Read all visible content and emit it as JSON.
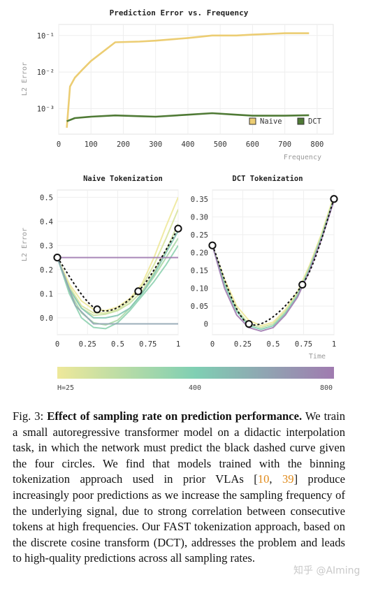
{
  "chart_data": [
    {
      "type": "line",
      "title": "Prediction Error vs. Frequency",
      "xlabel": "Frequency",
      "ylabel": "L2 Error",
      "yscale": "log",
      "xlim": [
        0,
        850
      ],
      "ylim": [
        0.0002,
        0.2
      ],
      "xticks": [
        "0",
        "100",
        "200",
        "300",
        "400",
        "500",
        "600",
        "700",
        "800"
      ],
      "yticks": [
        "10⁻¹",
        "10⁻²",
        "10⁻³"
      ],
      "legend": "bottom-right",
      "series": [
        {
          "name": "Naive",
          "color": "#eccd73",
          "x": [
            25,
            35,
            50,
            75,
            100,
            175,
            250,
            300,
            400,
            475,
            550,
            600,
            700,
            775
          ],
          "y": [
            0.0003,
            0.004,
            0.007,
            0.012,
            0.02,
            0.065,
            0.068,
            0.072,
            0.085,
            0.1,
            0.1,
            0.105,
            0.115,
            0.115
          ]
        },
        {
          "name": "DCT",
          "color": "#4f7a35",
          "x": [
            25,
            50,
            100,
            175,
            250,
            300,
            400,
            475,
            550,
            600,
            700,
            775
          ],
          "y": [
            0.00045,
            0.00055,
            0.0006,
            0.00065,
            0.00062,
            0.0006,
            0.00068,
            0.00075,
            0.00068,
            0.00064,
            0.00064,
            0.00066
          ]
        }
      ]
    },
    {
      "type": "line",
      "title": "Naive Tokenization",
      "ylabel": "L2 Error",
      "xlim": [
        0,
        1
      ],
      "ylim": [
        -0.07,
        0.53
      ],
      "xticks": [
        "0",
        "0.25",
        "0.5",
        "0.75",
        "1"
      ],
      "yticks": [
        "0.0",
        "0.1",
        "0.2",
        "0.3",
        "0.4",
        "0.5"
      ],
      "target": {
        "x": [
          0,
          0.33,
          0.67,
          1
        ],
        "y": [
          0.25,
          0.035,
          0.11,
          0.37
        ]
      },
      "predictions": [
        {
          "h": 25,
          "x": [
            0,
            0.1,
            0.2,
            0.3,
            0.4,
            0.5,
            0.6,
            0.7,
            0.8,
            0.9,
            1
          ],
          "y": [
            0.25,
            0.14,
            0.07,
            0.035,
            0.03,
            0.045,
            0.08,
            0.14,
            0.25,
            0.38,
            0.5
          ]
        },
        {
          "h": 100,
          "x": [
            0,
            0.1,
            0.2,
            0.3,
            0.4,
            0.5,
            0.6,
            0.7,
            0.8,
            0.9,
            1
          ],
          "y": [
            0.25,
            0.13,
            0.05,
            0.02,
            0.02,
            0.035,
            0.07,
            0.13,
            0.22,
            0.33,
            0.45
          ]
        },
        {
          "h": 150,
          "x": [
            0,
            0.1,
            0.2,
            0.3,
            0.4,
            0.5,
            0.6,
            0.7,
            0.8,
            0.9,
            1
          ],
          "y": [
            0.25,
            0.12,
            0.04,
            0.01,
            0.015,
            0.03,
            0.06,
            0.11,
            0.19,
            0.28,
            0.39
          ]
        },
        {
          "h": 250,
          "x": [
            0,
            0.1,
            0.2,
            0.3,
            0.4,
            0.5,
            0.6,
            0.7,
            0.8,
            0.9,
            1
          ],
          "y": [
            0.25,
            0.11,
            0.02,
            -0.02,
            -0.03,
            -0.01,
            0.04,
            0.1,
            0.17,
            0.25,
            0.33
          ]
        },
        {
          "h": 350,
          "x": [
            0,
            0.1,
            0.2,
            0.3,
            0.4,
            0.5,
            0.6,
            0.7,
            0.8,
            0.9,
            1
          ],
          "y": [
            0.25,
            0.1,
            0.0,
            -0.04,
            -0.045,
            -0.02,
            0.03,
            0.09,
            0.15,
            0.22,
            0.3
          ]
        },
        {
          "h": 450,
          "x": [
            0,
            0.1,
            0.2,
            0.3,
            0.4,
            0.5,
            0.6,
            0.7,
            0.8,
            0.9,
            1
          ],
          "y": [
            0.25,
            0.12,
            0.04,
            0.0,
            0.0,
            0.01,
            0.04,
            0.1,
            0.18,
            0.27,
            0.36
          ]
        },
        {
          "h": 600,
          "x": [
            0,
            0.15,
            0.3,
            0.5,
            0.7,
            1
          ],
          "y": [
            0.25,
            0.05,
            -0.025,
            -0.025,
            -0.025,
            -0.025
          ]
        },
        {
          "h": 800,
          "x": [
            0,
            1
          ],
          "y": [
            0.25,
            0.25
          ]
        }
      ]
    },
    {
      "type": "line",
      "title": "DCT Tokenization",
      "xlabel": "Time",
      "xlim": [
        0,
        1
      ],
      "ylim": [
        -0.03,
        0.375
      ],
      "xticks": [
        "0",
        "0.25",
        "0.5",
        "0.75",
        "1"
      ],
      "yticks": [
        "0",
        "0.05",
        "0.10",
        "0.15",
        "0.20",
        "0.25",
        "0.30",
        "0.35"
      ],
      "target": {
        "x": [
          0,
          0.3,
          0.74,
          1
        ],
        "y": [
          0.22,
          0.0,
          0.11,
          0.35
        ]
      },
      "predictions": [
        {
          "h": 25,
          "x": [
            0,
            0.1,
            0.2,
            0.3,
            0.4,
            0.5,
            0.6,
            0.7,
            0.8,
            0.9,
            1
          ],
          "y": [
            0.22,
            0.125,
            0.05,
            0.01,
            -0.005,
            0.005,
            0.04,
            0.09,
            0.165,
            0.255,
            0.36
          ]
        },
        {
          "h": 150,
          "x": [
            0,
            0.1,
            0.2,
            0.3,
            0.4,
            0.5,
            0.6,
            0.7,
            0.8,
            0.9,
            1
          ],
          "y": [
            0.22,
            0.115,
            0.04,
            0.0,
            -0.01,
            0.0,
            0.035,
            0.085,
            0.16,
            0.25,
            0.355
          ]
        },
        {
          "h": 400,
          "x": [
            0,
            0.1,
            0.2,
            0.3,
            0.4,
            0.5,
            0.6,
            0.7,
            0.8,
            0.9,
            1
          ],
          "y": [
            0.22,
            0.11,
            0.035,
            -0.005,
            -0.015,
            -0.005,
            0.03,
            0.08,
            0.155,
            0.245,
            0.35
          ]
        },
        {
          "h": 800,
          "x": [
            0,
            0.1,
            0.2,
            0.3,
            0.4,
            0.5,
            0.6,
            0.7,
            0.8,
            0.9,
            1
          ],
          "y": [
            0.22,
            0.1,
            0.025,
            -0.01,
            -0.02,
            -0.01,
            0.025,
            0.075,
            0.15,
            0.24,
            0.345
          ]
        }
      ]
    },
    {
      "type": "colorbar",
      "labels": [
        "H=25",
        "400",
        "800"
      ],
      "colors": [
        "#eee89a",
        "#7fcfb3",
        "#a07bb0"
      ]
    }
  ],
  "caption": {
    "label": "Fig. 3: ",
    "bold": "Effect of sampling rate on prediction performance.",
    "part1": " We train a small autoregressive transformer model on a didactic interpolation task, in which the network must predict the black dashed curve given the four circles. We find that models trained with the binning tokenization approach used in prior VLAs [",
    "cite1": "10",
    "sep": ", ",
    "cite2": "39",
    "part2": "] produce increasingly poor predictions as we increase the sampling frequency of the underlying signal, due to strong correlation between consecutive tokens at high frequencies. Our FAST tokenization approach, based on the discrete cosine transform (DCT), addresses the problem and leads to high-quality predictions across all sampling rates."
  },
  "watermark": "知乎 @AIming"
}
